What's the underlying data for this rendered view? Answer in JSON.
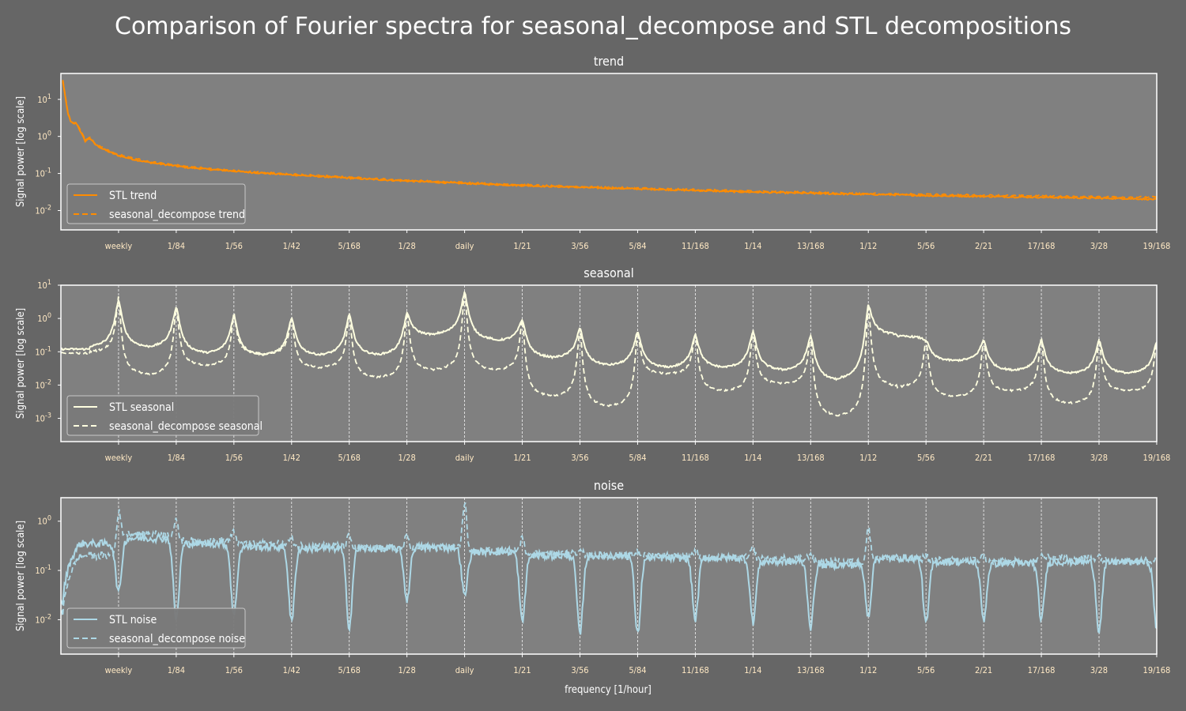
{
  "title": "Comparison of Fourier spectra for seasonal_decompose and STL decompositions",
  "xlabel": "frequency [1/hour]",
  "colors": {
    "figure_bg": "#666666",
    "axes_bg": "#808080",
    "frame": "#ffffff",
    "tick_text": "#ffe9c4",
    "trend": "#ff8c00",
    "seasonal": "#ffffe0",
    "noise": "#add8e6"
  },
  "chart_data": [
    {
      "type": "line",
      "panel": "trend",
      "title": "trend",
      "ylabel": "Signal power [log scale]",
      "yscale": "log",
      "ylim": [
        0.003,
        50
      ],
      "yticks": [
        0.01,
        0.1,
        1,
        10
      ],
      "ytick_labels": [
        {
          "base": "10",
          "exp": "-2"
        },
        {
          "base": "10",
          "exp": "-1"
        },
        {
          "base": "10",
          "exp": "0"
        },
        {
          "base": "10",
          "exp": "1"
        }
      ],
      "xlim": [
        0,
        0.1131
      ],
      "x_tick_values": [
        0.005952,
        0.011905,
        0.017857,
        0.02381,
        0.029762,
        0.035714,
        0.041667,
        0.047619,
        0.053571,
        0.059524,
        0.065476,
        0.071429,
        0.077381,
        0.083333,
        0.089286,
        0.095238,
        0.10119,
        0.107143,
        0.113095
      ],
      "x_tick_labels": [
        "weekly",
        "1/84",
        "1/56",
        "1/42",
        "5/168",
        "1/28",
        "daily",
        "1/21",
        "3/56",
        "5/84",
        "11/168",
        "1/14",
        "13/168",
        "1/12",
        "5/56",
        "2/21",
        "17/168",
        "3/28",
        "19/168"
      ],
      "vlines": [],
      "legend": {
        "position": "lower-left",
        "entries": [
          "STL trend",
          "seasonal_decompose trend"
        ]
      },
      "series": [
        {
          "name": "STL trend",
          "style": "solid",
          "color": "#ff8c00",
          "x": [
            0.0002,
            0.0004,
            0.0007,
            0.001,
            0.0013,
            0.0016,
            0.002,
            0.0025,
            0.003,
            0.0035,
            0.0042,
            0.005,
            0.006,
            0.0075,
            0.009,
            0.011,
            0.013,
            0.016,
            0.02,
            0.025,
            0.03,
            0.035,
            0.04,
            0.045,
            0.05,
            0.055,
            0.06,
            0.065,
            0.07,
            0.075,
            0.08,
            0.085,
            0.09,
            0.095,
            0.1,
            0.105,
            0.11,
            0.1131
          ],
          "y": [
            30,
            14,
            4.5,
            2.5,
            2.2,
            2.3,
            1.4,
            0.75,
            0.9,
            0.62,
            0.48,
            0.38,
            0.3,
            0.24,
            0.2,
            0.17,
            0.145,
            0.125,
            0.105,
            0.088,
            0.074,
            0.064,
            0.056,
            0.05,
            0.045,
            0.041,
            0.038,
            0.035,
            0.032,
            0.03,
            0.028,
            0.027,
            0.025,
            0.024,
            0.023,
            0.022,
            0.021,
            0.02
          ]
        },
        {
          "name": "seasonal_decompose trend",
          "style": "dashed",
          "color": "#ff8c00",
          "x": [
            0.0002,
            0.0004,
            0.0007,
            0.001,
            0.0013,
            0.0016,
            0.002,
            0.0025,
            0.003,
            0.0035,
            0.0042,
            0.005,
            0.006,
            0.0075,
            0.009,
            0.011,
            0.013,
            0.016,
            0.02,
            0.025,
            0.03,
            0.035,
            0.04,
            0.045,
            0.05,
            0.055,
            0.06,
            0.065,
            0.07,
            0.075,
            0.08,
            0.085,
            0.09,
            0.095,
            0.1,
            0.105,
            0.11,
            0.1131
          ],
          "y": [
            32,
            15,
            4.8,
            2.7,
            2.3,
            2.4,
            1.5,
            0.8,
            0.95,
            0.66,
            0.51,
            0.4,
            0.32,
            0.26,
            0.21,
            0.18,
            0.155,
            0.13,
            0.11,
            0.092,
            0.078,
            0.067,
            0.059,
            0.053,
            0.047,
            0.043,
            0.04,
            0.037,
            0.034,
            0.032,
            0.03,
            0.028,
            0.027,
            0.026,
            0.025,
            0.024,
            0.023,
            0.023
          ]
        }
      ]
    },
    {
      "type": "line",
      "panel": "seasonal",
      "title": "seasonal",
      "ylabel": "Signal power [log scale]",
      "yscale": "log",
      "ylim": [
        0.0002,
        10
      ],
      "yticks": [
        0.001,
        0.01,
        0.1,
        1,
        10
      ],
      "ytick_labels": [
        {
          "base": "10",
          "exp": "-3"
        },
        {
          "base": "10",
          "exp": "-2"
        },
        {
          "base": "10",
          "exp": "-1"
        },
        {
          "base": "10",
          "exp": "0"
        },
        {
          "base": "10",
          "exp": "1"
        }
      ],
      "xlim": [
        0,
        0.1131
      ],
      "x_tick_values": [
        0.005952,
        0.011905,
        0.017857,
        0.02381,
        0.029762,
        0.035714,
        0.041667,
        0.047619,
        0.053571,
        0.059524,
        0.065476,
        0.071429,
        0.077381,
        0.083333,
        0.089286,
        0.095238,
        0.10119,
        0.107143,
        0.113095
      ],
      "x_tick_labels": [
        "weekly",
        "1/84",
        "1/56",
        "1/42",
        "5/168",
        "1/28",
        "daily",
        "1/21",
        "3/56",
        "5/84",
        "11/168",
        "1/14",
        "13/168",
        "1/12",
        "5/56",
        "2/21",
        "17/168",
        "3/28",
        "19/168"
      ],
      "vlines": [
        0.005952,
        0.011905,
        0.017857,
        0.02381,
        0.029762,
        0.035714,
        0.041667,
        0.047619,
        0.053571,
        0.059524,
        0.065476,
        0.071429,
        0.077381,
        0.083333,
        0.089286,
        0.095238,
        0.10119,
        0.107143,
        0.113095
      ],
      "legend": {
        "position": "lower-left",
        "entries": [
          "STL seasonal",
          "seasonal_decompose seasonal"
        ]
      },
      "series": [
        {
          "name": "STL seasonal",
          "style": "solid",
          "color": "#ffffe0",
          "base": [
            0.12,
            0.12,
            0.08,
            0.07,
            0.07,
            0.07,
            0.3,
            0.2,
            0.06,
            0.035,
            0.03,
            0.03,
            0.025,
            0.012,
            0.3,
            0.05,
            0.025,
            0.02,
            0.02,
            0.02
          ],
          "peak": [
            3.5,
            2.2,
            1.2,
            1.0,
            1.3,
            1.4,
            6.0,
            0.9,
            0.5,
            0.4,
            0.33,
            0.4,
            0.3,
            2.5,
            0.22,
            0.22,
            0.22,
            0.22,
            0.2
          ]
        },
        {
          "name": "seasonal_decompose seasonal",
          "style": "dashed",
          "color": "#ffffe0",
          "base": [
            0.09,
            0.018,
            0.035,
            0.08,
            0.03,
            0.015,
            0.025,
            0.025,
            0.004,
            0.002,
            0.02,
            0.006,
            0.01,
            0.001,
            0.008,
            0.004,
            0.006,
            0.0025,
            0.006,
            0.0035
          ],
          "peak": [
            4.5,
            2.5,
            1.4,
            1.1,
            1.5,
            1.6,
            7.0,
            1.0,
            0.55,
            0.45,
            0.38,
            0.45,
            0.32,
            2.8,
            0.25,
            0.25,
            0.27,
            0.25,
            0.2
          ]
        }
      ]
    },
    {
      "type": "line",
      "panel": "noise",
      "title": "noise",
      "ylabel": "Signal power [log scale]",
      "yscale": "log",
      "ylim": [
        0.002,
        3
      ],
      "yticks": [
        0.01,
        0.1,
        1
      ],
      "ytick_labels": [
        {
          "base": "10",
          "exp": "-2"
        },
        {
          "base": "10",
          "exp": "-1"
        },
        {
          "base": "10",
          "exp": "0"
        }
      ],
      "xlim": [
        0,
        0.1131
      ],
      "x_tick_values": [
        0.005952,
        0.011905,
        0.017857,
        0.02381,
        0.029762,
        0.035714,
        0.041667,
        0.047619,
        0.053571,
        0.059524,
        0.065476,
        0.071429,
        0.077381,
        0.083333,
        0.089286,
        0.095238,
        0.10119,
        0.107143,
        0.113095
      ],
      "x_tick_labels": [
        "weekly",
        "1/84",
        "1/56",
        "1/42",
        "5/168",
        "1/28",
        "daily",
        "1/21",
        "3/56",
        "5/84",
        "11/168",
        "1/14",
        "13/168",
        "1/12",
        "5/56",
        "2/21",
        "17/168",
        "3/28",
        "19/168"
      ],
      "vlines": [
        0.005952,
        0.011905,
        0.017857,
        0.02381,
        0.029762,
        0.035714,
        0.041667,
        0.047619,
        0.053571,
        0.059524,
        0.065476,
        0.071429,
        0.077381,
        0.083333,
        0.089286,
        0.095238,
        0.10119,
        0.107143,
        0.113095
      ],
      "legend": {
        "position": "lower-left",
        "entries": [
          "STL noise",
          "seasonal_decompose noise"
        ]
      },
      "series": [
        {
          "name": "STL noise",
          "style": "solid",
          "color": "#add8e6",
          "level": [
            0.35,
            0.45,
            0.35,
            0.3,
            0.28,
            0.28,
            0.3,
            0.24,
            0.2,
            0.2,
            0.18,
            0.18,
            0.15,
            0.13,
            0.18,
            0.15,
            0.14,
            0.15,
            0.15,
            0.14
          ],
          "dip": [
            0.035,
            0.01,
            0.012,
            0.009,
            0.007,
            0.025,
            0.03,
            0.009,
            0.005,
            0.005,
            0.01,
            0.009,
            0.007,
            0.012,
            0.008,
            0.01,
            0.01,
            0.006,
            0.007
          ]
        },
        {
          "name": "seasonal_decompose noise",
          "style": "dashed",
          "color": "#add8e6",
          "level": [
            0.2,
            0.55,
            0.4,
            0.35,
            0.32,
            0.28,
            0.28,
            0.25,
            0.22,
            0.2,
            0.2,
            0.18,
            0.17,
            0.15,
            0.17,
            0.16,
            0.15,
            0.18,
            0.16,
            0.16
          ],
          "peak": [
            1.6,
            1.0,
            0.6,
            0.45,
            0.5,
            0.5,
            2.5,
            0.45,
            0.3,
            0.25,
            0.25,
            0.28,
            0.22,
            0.75,
            0.2,
            0.2,
            0.2,
            0.2,
            0.18
          ]
        }
      ]
    }
  ]
}
